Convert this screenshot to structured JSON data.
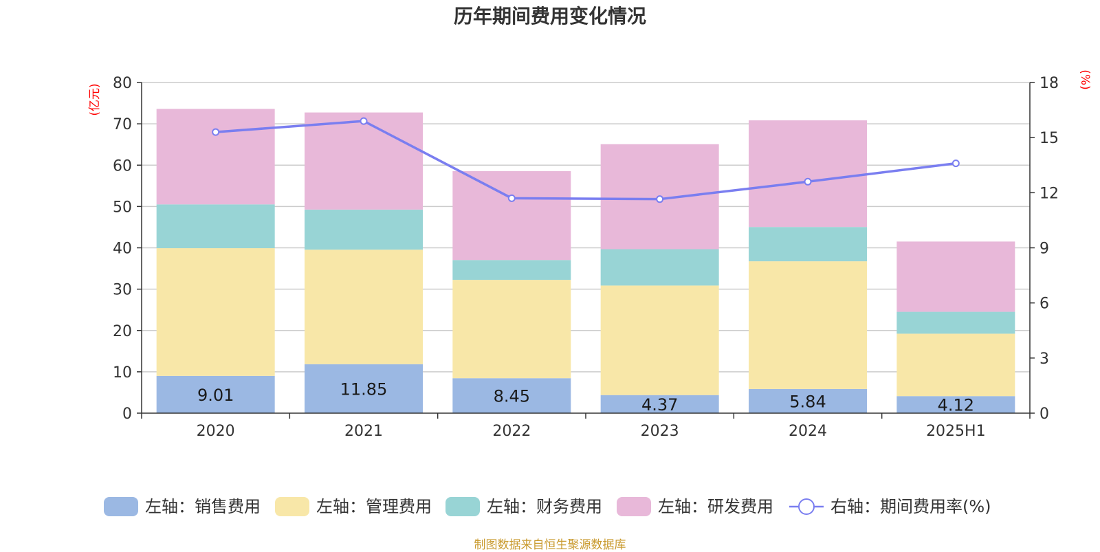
{
  "chart_data": {
    "type": "bar",
    "stacked": true,
    "title": "历年期间费用变化情况",
    "categories": [
      "2020",
      "2021",
      "2022",
      "2023",
      "2024",
      "2025H1"
    ],
    "left_axis": {
      "unit": "(亿元)",
      "ylim": [
        0,
        80
      ],
      "ticks": [
        "0",
        "10",
        "20",
        "30",
        "40",
        "50",
        "60",
        "70",
        "80"
      ]
    },
    "right_axis": {
      "unit": "(%)",
      "ylim": [
        0,
        18
      ],
      "ticks": [
        "0",
        "3",
        "6",
        "9",
        "12",
        "15",
        "18"
      ]
    },
    "series": [
      {
        "name": "左轴：销售费用",
        "axis": "left",
        "color": "#9bb8e3",
        "values": [
          9.01,
          11.85,
          8.45,
          4.37,
          5.84,
          4.12
        ],
        "labels": [
          "9.01",
          "11.85",
          "8.45",
          "4.37",
          "5.84",
          "4.12"
        ]
      },
      {
        "name": "左轴：管理费用",
        "axis": "left",
        "color": "#f8e7a8",
        "values": [
          30.9,
          27.7,
          23.8,
          26.5,
          30.9,
          15.1
        ]
      },
      {
        "name": "左轴：财务费用",
        "axis": "left",
        "color": "#98d4d5",
        "values": [
          10.6,
          9.7,
          4.8,
          8.8,
          8.3,
          5.3
        ]
      },
      {
        "name": "左轴：研发费用",
        "axis": "left",
        "color": "#e8b8d9",
        "values": [
          23.1,
          23.5,
          21.5,
          25.4,
          25.8,
          17.0
        ]
      },
      {
        "name": "右轴：期间费用率(%)",
        "axis": "right",
        "type": "line",
        "color": "#7a7ef0",
        "values": [
          15.3,
          15.9,
          11.7,
          11.65,
          12.6,
          13.6
        ]
      }
    ],
    "grid": true,
    "legend_position": "bottom"
  },
  "source_text": "制图数据来自恒生聚源数据库"
}
